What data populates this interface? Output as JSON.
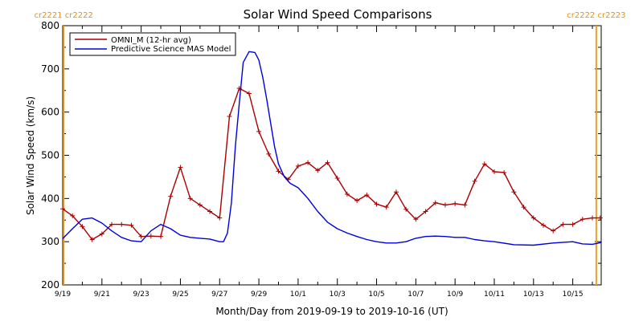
{
  "chart_data": {
    "type": "line",
    "title": "Solar Wind Speed Comparisons",
    "xlabel": "Month/Day from 2019-09-19 to 2019-10-16 (UT)",
    "ylabel": "Solar Wind Speed (km/s)",
    "ylim": [
      200,
      800
    ],
    "yticks": [
      200,
      300,
      400,
      500,
      600,
      700,
      800
    ],
    "xlim": [
      0,
      27.45
    ],
    "xticks": [
      {
        "x": 0,
        "label": "9/19"
      },
      {
        "x": 2,
        "label": "9/21"
      },
      {
        "x": 4,
        "label": "9/23"
      },
      {
        "x": 6,
        "label": "9/25"
      },
      {
        "x": 8,
        "label": "9/27"
      },
      {
        "x": 10,
        "label": "9/29"
      },
      {
        "x": 12,
        "label": "10/1"
      },
      {
        "x": 14,
        "label": "10/3"
      },
      {
        "x": 16,
        "label": "10/5"
      },
      {
        "x": 18,
        "label": "10/7"
      },
      {
        "x": 20,
        "label": "10/9"
      },
      {
        "x": 22,
        "label": "10/11"
      },
      {
        "x": 24,
        "label": "10/13"
      },
      {
        "x": 26,
        "label": "10/15"
      }
    ],
    "rotation_markers": [
      {
        "x": 0.05,
        "left_label": "cr2221",
        "right_label": "cr2222"
      },
      {
        "x": 27.2,
        "left_label": "cr2222",
        "right_label": "cr2223"
      }
    ],
    "legend_position": "top-left",
    "series": [
      {
        "name": "OMNI_M (12-hr avg)",
        "color": "#aa0000",
        "marker": "plus",
        "x": [
          0,
          0.5,
          1,
          1.5,
          2,
          2.5,
          3,
          3.5,
          4,
          4.5,
          5,
          5.5,
          6,
          6.5,
          7,
          7.5,
          8,
          8.5,
          9,
          9.5,
          10,
          10.5,
          11,
          11.5,
          12,
          12.5,
          13,
          13.5,
          14,
          14.5,
          15,
          15.5,
          16,
          16.5,
          17,
          17.5,
          18,
          18.5,
          19,
          19.5,
          20,
          20.5,
          21,
          21.5,
          22,
          22.5,
          23,
          23.5,
          24,
          24.5,
          25,
          25.5,
          26,
          26.5,
          27,
          27.4
        ],
        "y": [
          376,
          360,
          335,
          305,
          318,
          340,
          340,
          338,
          312,
          313,
          312,
          405,
          472,
          400,
          385,
          370,
          355,
          590,
          655,
          643,
          555,
          503,
          463,
          444,
          475,
          483,
          465,
          483,
          447,
          410,
          395,
          408,
          387,
          380,
          415,
          375,
          352,
          370,
          390,
          385,
          388,
          385,
          440,
          480,
          462,
          460,
          415,
          380,
          355,
          338,
          325,
          340,
          340,
          352,
          355,
          355
        ]
      },
      {
        "name": "Predictive Science MAS Model",
        "color": "#0000dd",
        "marker": "none",
        "x": [
          0,
          0.5,
          1,
          1.5,
          2,
          2.5,
          3,
          3.5,
          4,
          4.5,
          5,
          5.5,
          6,
          6.5,
          7,
          7.5,
          8,
          8.2,
          8.4,
          8.6,
          8.8,
          9,
          9.2,
          9.5,
          9.8,
          10,
          10.2,
          10.4,
          10.6,
          10.8,
          11,
          11.3,
          11.6,
          12,
          12.5,
          13,
          13.5,
          14,
          14.5,
          15,
          15.5,
          16,
          16.5,
          17,
          17.5,
          18,
          18.5,
          19,
          19.5,
          20,
          20.5,
          21,
          21.5,
          22,
          23,
          24,
          25,
          26,
          26.5,
          27,
          27.45
        ],
        "y": [
          307,
          330,
          352,
          355,
          343,
          325,
          310,
          302,
          300,
          325,
          340,
          330,
          315,
          310,
          308,
          306,
          300,
          300,
          320,
          390,
          520,
          620,
          715,
          740,
          738,
          720,
          680,
          630,
          575,
          520,
          480,
          450,
          435,
          425,
          400,
          370,
          345,
          330,
          320,
          312,
          305,
          300,
          297,
          297,
          300,
          308,
          312,
          313,
          312,
          310,
          310,
          305,
          302,
          300,
          293,
          292,
          297,
          300,
          295,
          294,
          298
        ]
      }
    ]
  }
}
